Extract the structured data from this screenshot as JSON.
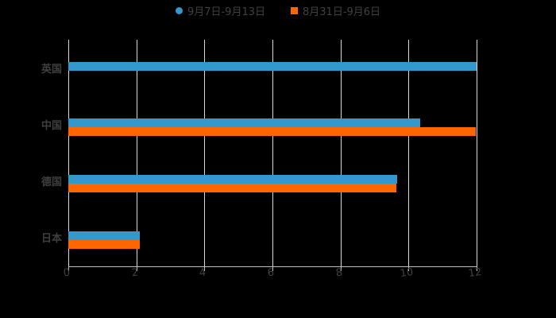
{
  "chart_data": {
    "type": "bar",
    "orientation": "horizontal",
    "title": "",
    "xlabel": "",
    "ylabel": "",
    "categories": [
      "英国",
      "中国",
      "德国",
      "日本"
    ],
    "series": [
      {
        "name": "9月7日-9月13日",
        "color": "#3399cc",
        "values": [
          12.0,
          10.35,
          9.67,
          2.1
        ]
      },
      {
        "name": "8月31日-9月6日",
        "color": "#ff6600",
        "values": [
          0,
          11.98,
          9.64,
          2.1
        ]
      }
    ],
    "xlim": [
      0,
      12
    ],
    "xticks": [
      "0",
      "2",
      "4",
      "6",
      "8",
      "10",
      "12"
    ],
    "grid": true,
    "legend_position": "top"
  },
  "legend": {
    "series1": "9月7日-9月13日",
    "series2": "8月31日-9月6日"
  }
}
